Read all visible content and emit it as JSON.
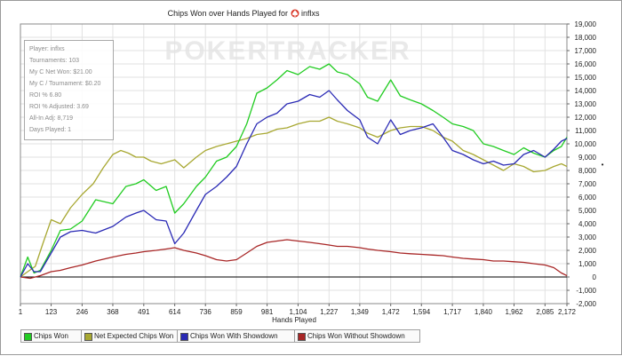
{
  "stats_box": {
    "player": "Player: inflxs",
    "tournaments": "Tournaments: 103",
    "net_won": "My C Net Won: $21.00",
    "per_tournament": "My C / Tournament: $0.20",
    "roi": "ROI % 6.80",
    "roi_adjusted": "ROI % Adjusted: 3.69",
    "allin_adj": "All-In Adj: 8,719",
    "days_played": "Days Played: 1"
  },
  "watermark": "POKERTRACKER",
  "chart_data": {
    "type": "line",
    "title": "Chips Won over Hands Played for",
    "title_player": "inflxs",
    "xlabel": "Hands Played",
    "ylabel": "",
    "x_ticks": [
      1,
      123,
      246,
      368,
      491,
      614,
      736,
      859,
      981,
      1104,
      1227,
      1349,
      1472,
      1594,
      1717,
      1840,
      1962,
      2085,
      2172
    ],
    "x_tick_labels": [
      "1",
      "123",
      "246",
      "368",
      "491",
      "614",
      "736",
      "859",
      "981",
      "1,104",
      "1,227",
      "1,349",
      "1,472",
      "1,594",
      "1,717",
      "1,840",
      "1,962",
      "2,085",
      "2,172"
    ],
    "y_ticks": [
      -2000,
      -1000,
      0,
      1000,
      2000,
      3000,
      4000,
      5000,
      6000,
      7000,
      8000,
      9000,
      10000,
      11000,
      12000,
      13000,
      14000,
      15000,
      16000,
      17000,
      18000,
      19000
    ],
    "y_tick_labels": [
      "-2,000",
      "-1,000",
      "0",
      "1,000",
      "2,000",
      "3,000",
      "4,000",
      "5,000",
      "6,000",
      "7,000",
      "8,000",
      "9,000",
      "10,000",
      "11,000",
      "12,000",
      "13,000",
      "14,000",
      "15,000",
      "16,000",
      "17,000",
      "18,000",
      "19,000"
    ],
    "xlim": [
      1,
      2172
    ],
    "ylim": [
      -2000,
      19000
    ],
    "grid": true,
    "legend_position": "bottom",
    "series": [
      {
        "name": "Chips Won",
        "color": "#22cc22",
        "x": [
          1,
          30,
          55,
          80,
          123,
          160,
          200,
          246,
          300,
          368,
          420,
          460,
          491,
          540,
          580,
          614,
          650,
          700,
          736,
          780,
          820,
          859,
          900,
          940,
          981,
          1020,
          1060,
          1104,
          1150,
          1190,
          1227,
          1260,
          1300,
          1349,
          1380,
          1420,
          1472,
          1510,
          1550,
          1594,
          1640,
          1680,
          1717,
          1760,
          1800,
          1840,
          1880,
          1920,
          1962,
          2000,
          2040,
          2085,
          2120,
          2150,
          2172
        ],
        "values": [
          0,
          1500,
          300,
          500,
          2000,
          3500,
          3600,
          4200,
          5800,
          5500,
          6800,
          7000,
          7300,
          6500,
          6800,
          4800,
          5500,
          6800,
          7500,
          8700,
          9000,
          9800,
          11500,
          13800,
          14200,
          14800,
          15500,
          15200,
          15800,
          15600,
          16000,
          15400,
          15200,
          14500,
          13500,
          13200,
          14800,
          13600,
          13300,
          13000,
          12500,
          12000,
          11500,
          11300,
          11000,
          10000,
          9800,
          9500,
          9200,
          9700,
          9300,
          9000,
          9500,
          9800,
          10500
        ]
      },
      {
        "name": "Net Expected Chips Won",
        "color": "#a8a832",
        "x": [
          1,
          30,
          60,
          90,
          123,
          160,
          200,
          246,
          290,
          330,
          368,
          400,
          430,
          460,
          491,
          520,
          560,
          614,
          650,
          700,
          736,
          780,
          820,
          859,
          900,
          940,
          981,
          1020,
          1060,
          1104,
          1150,
          1190,
          1227,
          1260,
          1300,
          1349,
          1380,
          1420,
          1472,
          1510,
          1550,
          1594,
          1640,
          1680,
          1717,
          1760,
          1800,
          1840,
          1880,
          1920,
          1962,
          2000,
          2040,
          2085,
          2120,
          2150,
          2172
        ],
        "values": [
          0,
          400,
          800,
          2500,
          4300,
          4000,
          5200,
          6200,
          7000,
          8200,
          9200,
          9500,
          9300,
          9000,
          9000,
          8700,
          8500,
          8800,
          8200,
          9000,
          9500,
          9800,
          10000,
          10200,
          10400,
          10700,
          10800,
          11100,
          11200,
          11500,
          11700,
          11700,
          12000,
          11700,
          11500,
          11200,
          10800,
          10500,
          11000,
          11200,
          11300,
          11300,
          11000,
          10500,
          10200,
          9500,
          9200,
          8800,
          8400,
          8000,
          8500,
          8300,
          7900,
          8000,
          8300,
          8500,
          8300
        ]
      },
      {
        "name": "Chips Won With Showdown",
        "color": "#2a2ab5",
        "x": [
          1,
          30,
          55,
          80,
          123,
          160,
          200,
          246,
          300,
          368,
          420,
          460,
          491,
          540,
          580,
          614,
          650,
          700,
          736,
          780,
          820,
          859,
          900,
          940,
          981,
          1020,
          1060,
          1104,
          1150,
          1190,
          1227,
          1260,
          1300,
          1349,
          1380,
          1420,
          1472,
          1510,
          1550,
          1594,
          1640,
          1680,
          1717,
          1760,
          1800,
          1840,
          1880,
          1920,
          1962,
          2000,
          2040,
          2085,
          2120,
          2150,
          2172
        ],
        "values": [
          0,
          1000,
          400,
          400,
          1800,
          3000,
          3400,
          3500,
          3300,
          3800,
          4500,
          4800,
          5000,
          4300,
          4200,
          2500,
          3300,
          5000,
          6200,
          6800,
          7500,
          8300,
          10000,
          11500,
          12000,
          12300,
          13000,
          13200,
          13700,
          13500,
          14000,
          13300,
          12500,
          11800,
          10500,
          10000,
          11800,
          10700,
          11000,
          11200,
          11500,
          10500,
          9500,
          9200,
          8800,
          8500,
          8700,
          8400,
          8500,
          9200,
          9500,
          9000,
          9600,
          10200,
          10400
        ]
      },
      {
        "name": "Chips Won Without Showdown",
        "color": "#a82626",
        "x": [
          1,
          40,
          80,
          123,
          160,
          200,
          246,
          300,
          368,
          420,
          460,
          491,
          540,
          580,
          614,
          650,
          700,
          736,
          780,
          820,
          859,
          900,
          940,
          981,
          1020,
          1060,
          1104,
          1150,
          1190,
          1227,
          1260,
          1300,
          1349,
          1380,
          1420,
          1472,
          1510,
          1550,
          1594,
          1640,
          1680,
          1717,
          1760,
          1800,
          1840,
          1880,
          1920,
          1962,
          2000,
          2040,
          2085,
          2120,
          2150,
          2172
        ],
        "values": [
          0,
          -100,
          100,
          400,
          500,
          700,
          900,
          1200,
          1500,
          1700,
          1800,
          1900,
          2000,
          2100,
          2200,
          2000,
          1800,
          1600,
          1300,
          1200,
          1300,
          1800,
          2300,
          2600,
          2700,
          2800,
          2700,
          2600,
          2500,
          2400,
          2300,
          2300,
          2200,
          2100,
          2000,
          1900,
          1800,
          1750,
          1700,
          1650,
          1600,
          1500,
          1400,
          1350,
          1300,
          1200,
          1200,
          1150,
          1100,
          1000,
          900,
          700,
          300,
          100
        ]
      }
    ]
  },
  "legend": [
    {
      "label": "Chips Won",
      "color": "#22cc22"
    },
    {
      "label": "Net Expected Chips Won",
      "color": "#a8a832"
    },
    {
      "label": "Chips Won With Showdown",
      "color": "#2a2ab5"
    },
    {
      "label": "Chips Won Without Showdown",
      "color": "#a82626"
    }
  ]
}
